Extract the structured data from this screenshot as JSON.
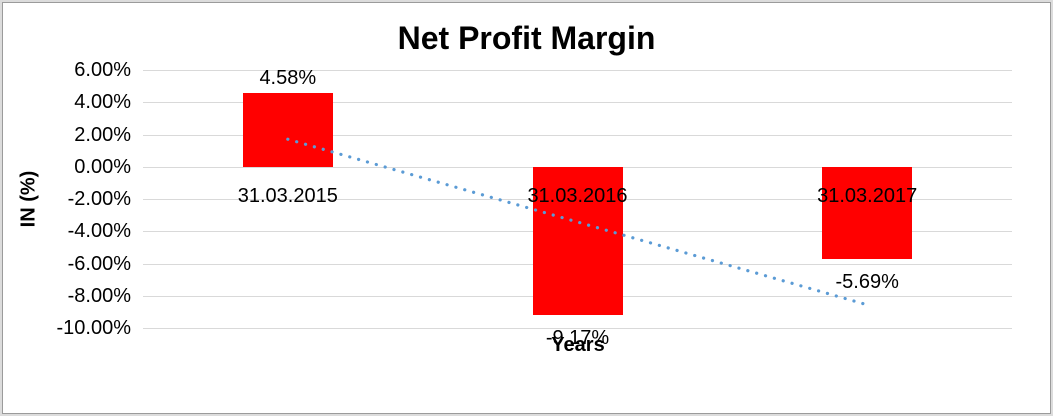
{
  "chart_data": {
    "type": "bar",
    "title": "Net Profit Margin",
    "xlabel": "Years",
    "ylabel": "IN (%)",
    "categories": [
      "31.03.2015",
      "31.03.2016",
      "31.03.2017"
    ],
    "values": [
      4.58,
      -9.17,
      -5.69
    ],
    "value_labels": [
      "4.58%",
      "-9.17%",
      "-5.69%"
    ],
    "ylim": [
      -10,
      6
    ],
    "ytick_values": [
      6,
      4,
      2,
      0,
      -2,
      -4,
      -6,
      -8,
      -10
    ],
    "ytick_labels": [
      "6.00%",
      "4.00%",
      "2.00%",
      "0.00%",
      "-2.00%",
      "-4.00%",
      "-6.00%",
      "-8.00%",
      "-10.00%"
    ],
    "grid": true,
    "legend": false,
    "bar_color": "#FF0000",
    "gridline_color": "#D9D9D9",
    "text_color": "#000000",
    "trendline": {
      "type": "linear",
      "style": "dotted",
      "color": "#5B9BD5",
      "start_value": 1.71,
      "end_value": -8.56
    }
  }
}
